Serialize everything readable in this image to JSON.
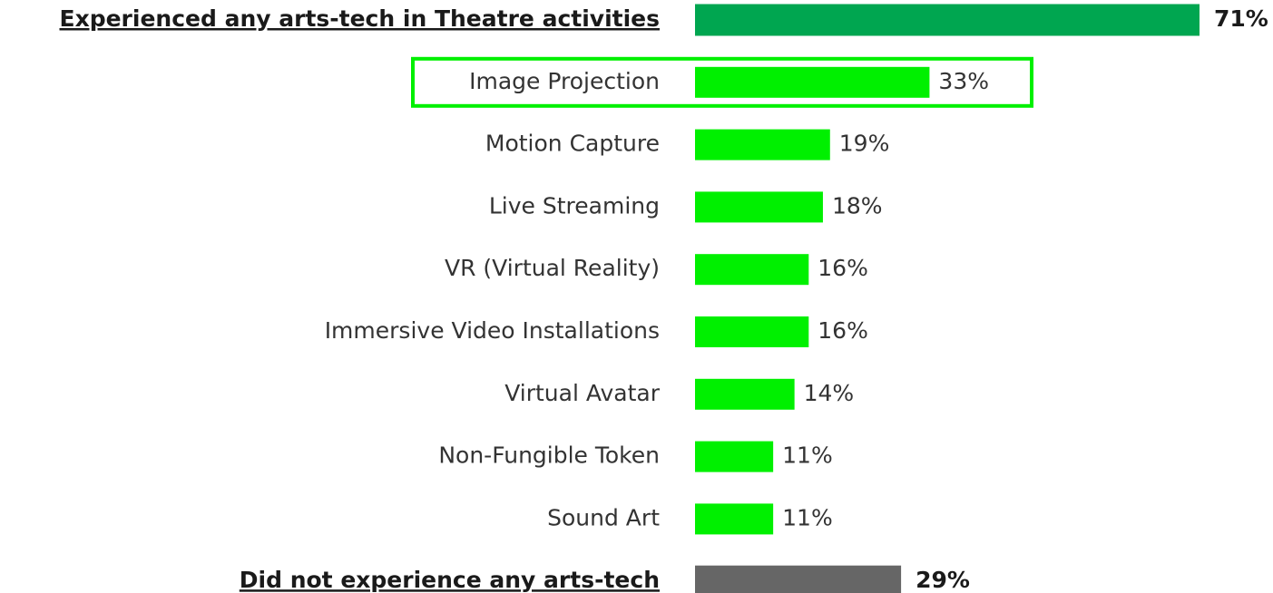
{
  "chart_data": {
    "type": "bar",
    "orientation": "horizontal",
    "categories": [
      "Experienced any arts-tech in Theatre activities",
      "Image Projection",
      "Motion Capture",
      "Live Streaming",
      "VR (Virtual Reality)",
      "Immersive Video Installations",
      "Virtual Avatar",
      "Non-Fungible Token",
      "Sound Art",
      "Did not experience any arts-tech"
    ],
    "values": [
      71,
      33,
      19,
      18,
      16,
      16,
      14,
      11,
      11,
      29
    ],
    "value_labels": [
      "71%",
      "33%",
      "19%",
      "18%",
      "16%",
      "16%",
      "14%",
      "11%",
      "11%",
      "29%"
    ],
    "colors": [
      "#00a650",
      "#00f000",
      "#00f000",
      "#00f000",
      "#00f000",
      "#00f000",
      "#00f000",
      "#00f000",
      "#00f000",
      "#666666"
    ],
    "bold_indices": [
      0,
      9
    ],
    "highlight_index": 1,
    "highlight_color": "#00f000"
  }
}
